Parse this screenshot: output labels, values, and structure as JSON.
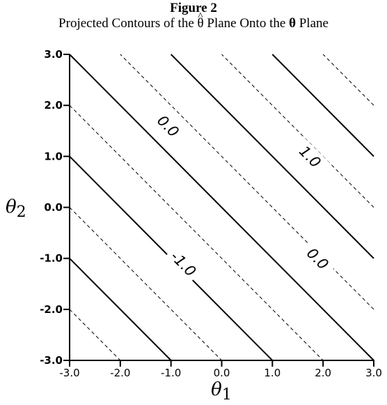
{
  "figure_label": "Figure 2",
  "title": {
    "before": "Projected Contours of the ",
    "theta_hat": "θ",
    "hat": "^",
    "middle": " Plane Onto the ",
    "theta_bold": "θ",
    "after": " Plane"
  },
  "chart_data": {
    "type": "line",
    "xlabel": "θ1",
    "ylabel": "θ2",
    "xlim": [
      -3.0,
      3.0
    ],
    "ylim": [
      -3.0,
      3.0
    ],
    "x_ticks": [
      "-3.0",
      "-2.0",
      "-1.0",
      "0.0",
      "1.0",
      "2.0",
      "3.0"
    ],
    "y_ticks": [
      "-3.0",
      "-2.0",
      "-1.0",
      "0.0",
      "1.0",
      "2.0",
      "3.0"
    ],
    "grid": false,
    "contours": [
      {
        "level": -4.0,
        "style": "dashed"
      },
      {
        "level": -3.0,
        "style": "solid"
      },
      {
        "level": -2.0,
        "style": "dashed"
      },
      {
        "level": -1.0,
        "style": "solid",
        "label": "-1.0",
        "label_point": [
          -0.75,
          -1.1
        ]
      },
      {
        "level": 0.0,
        "style": "dashed"
      },
      {
        "level": 1.0,
        "style": "solid",
        "label": "0.0",
        "label_point": [
          -1.05,
          1.6
        ]
      },
      {
        "level": 2.0,
        "style": "dashed"
      },
      {
        "level": 3.0,
        "style": "solid",
        "label": "1.0",
        "label_point": [
          1.75,
          1.0
        ]
      },
      {
        "level": 4.0,
        "style": "dashed"
      },
      {
        "level": 5.0,
        "style": "solid",
        "label": "0.0",
        "label_point": [
          1.9,
          -1.0
        ]
      },
      {
        "level": 6.0,
        "style": "dashed"
      },
      {
        "level": 7.0,
        "style": "solid"
      },
      {
        "level": 8.0,
        "style": "dashed"
      }
    ]
  }
}
